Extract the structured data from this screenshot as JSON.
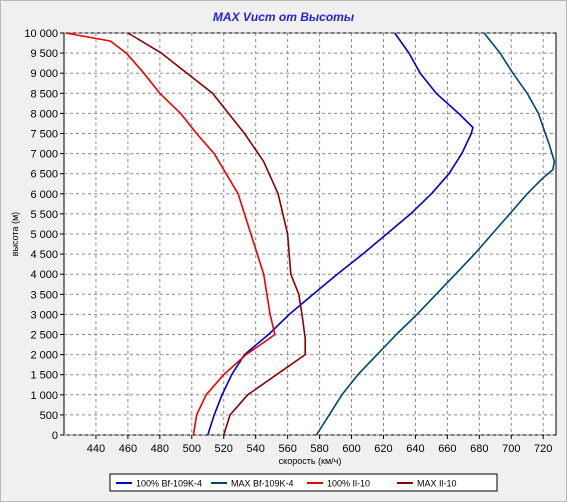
{
  "chart_data": {
    "type": "line",
    "title": "MAX Vист от Высоты",
    "xlabel": "скорость (км/ч)",
    "ylabel": "высота (м)",
    "xlim": [
      420,
      728
    ],
    "ylim": [
      0,
      10000
    ],
    "x_ticks": [
      440,
      460,
      480,
      500,
      520,
      540,
      560,
      580,
      600,
      620,
      640,
      660,
      680,
      700,
      720
    ],
    "y_ticks": [
      0,
      500,
      1000,
      1500,
      2000,
      2500,
      3000,
      3500,
      4000,
      4500,
      5000,
      5500,
      6000,
      6500,
      7000,
      7500,
      8000,
      8500,
      9000,
      9500,
      10000
    ],
    "y_tick_labels": [
      "0",
      "500",
      "1 000",
      "1 500",
      "2 000",
      "2 500",
      "3 000",
      "3 500",
      "4 000",
      "4 500",
      "5 000",
      "5 500",
      "6 000",
      "6 500",
      "7 000",
      "7 500",
      "8 000",
      "8 500",
      "9 000",
      "9 500",
      "10 000"
    ],
    "grid": true,
    "legend_position": "bottom",
    "series": [
      {
        "name": "100% Bf-109K-4",
        "color": "#0000cc",
        "points": [
          [
            510,
            0
          ],
          [
            514,
            500
          ],
          [
            519,
            1000
          ],
          [
            525,
            1500
          ],
          [
            533,
            2000
          ],
          [
            548,
            2500
          ],
          [
            561,
            3000
          ],
          [
            576,
            3500
          ],
          [
            591,
            4000
          ],
          [
            607,
            4500
          ],
          [
            622,
            5000
          ],
          [
            637,
            5500
          ],
          [
            650,
            6000
          ],
          [
            661,
            6500
          ],
          [
            669,
            7000
          ],
          [
            675,
            7500
          ],
          [
            676,
            7650
          ],
          [
            667,
            8000
          ],
          [
            653,
            8500
          ],
          [
            643,
            9000
          ],
          [
            636,
            9500
          ],
          [
            627,
            10000
          ]
        ]
      },
      {
        "name": "MAX Bf-109K-4",
        "color": "#004477",
        "points": [
          [
            578,
            0
          ],
          [
            586,
            500
          ],
          [
            594,
            1000
          ],
          [
            604,
            1500
          ],
          [
            616,
            2000
          ],
          [
            628,
            2500
          ],
          [
            641,
            3000
          ],
          [
            653,
            3500
          ],
          [
            665,
            4000
          ],
          [
            677,
            4500
          ],
          [
            688,
            5000
          ],
          [
            699,
            5500
          ],
          [
            710,
            6000
          ],
          [
            720,
            6400
          ],
          [
            726,
            6600
          ],
          [
            727,
            6800
          ],
          [
            724,
            7200
          ],
          [
            717,
            8000
          ],
          [
            710,
            8500
          ],
          [
            701,
            9000
          ],
          [
            693,
            9500
          ],
          [
            683,
            10000
          ]
        ]
      },
      {
        "name": "100% Il-10",
        "color": "#ee0000",
        "points": [
          [
            501,
            0
          ],
          [
            503,
            500
          ],
          [
            509,
            1000
          ],
          [
            520,
            1500
          ],
          [
            534,
            2000
          ],
          [
            545,
            2300
          ],
          [
            552,
            2500
          ],
          [
            549,
            3000
          ],
          [
            545,
            4000
          ],
          [
            537,
            5000
          ],
          [
            529,
            6000
          ],
          [
            514,
            7000
          ],
          [
            503,
            7500
          ],
          [
            493,
            8000
          ],
          [
            480,
            8500
          ],
          [
            470,
            9000
          ],
          [
            459,
            9500
          ],
          [
            449,
            9800
          ],
          [
            421,
            10000
          ]
        ]
      },
      {
        "name": "MAX Il-10",
        "color": "#880000",
        "points": [
          [
            520,
            0
          ],
          [
            524,
            500
          ],
          [
            535,
            1000
          ],
          [
            553,
            1500
          ],
          [
            571,
            2000
          ],
          [
            571,
            2400
          ],
          [
            569,
            3000
          ],
          [
            567,
            3500
          ],
          [
            562,
            4000
          ],
          [
            560,
            5000
          ],
          [
            554,
            6000
          ],
          [
            545,
            6800
          ],
          [
            533,
            7500
          ],
          [
            523,
            8000
          ],
          [
            513,
            8500
          ],
          [
            497,
            9000
          ],
          [
            481,
            9500
          ],
          [
            460,
            10000
          ]
        ]
      }
    ]
  }
}
